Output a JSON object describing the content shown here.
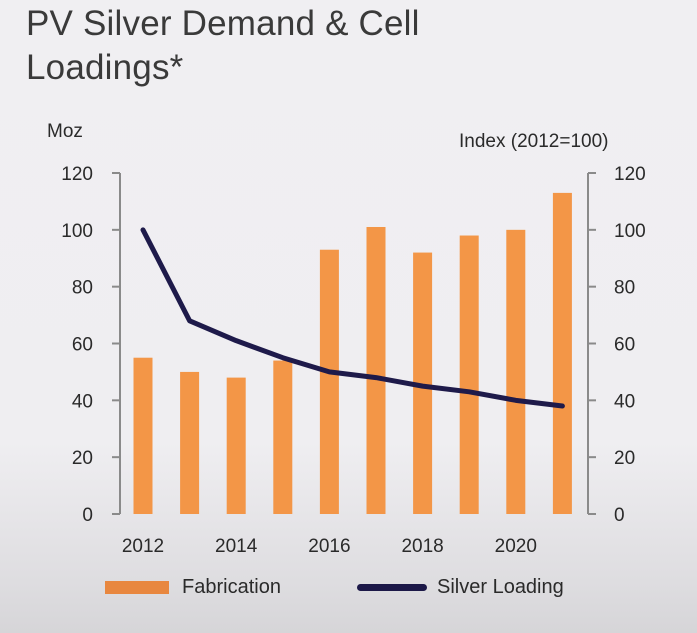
{
  "title": "PV Silver Demand & Cell Loadings*",
  "chart_data": {
    "type": "bar+line",
    "title": "PV Silver Demand & Cell Loadings*",
    "categories": [
      "2012",
      "2013",
      "2014",
      "2015",
      "2016",
      "2017",
      "2018",
      "2019",
      "2020",
      "2021"
    ],
    "x_tick_labels": [
      "2012",
      "2014",
      "2016",
      "2018",
      "2020"
    ],
    "series": [
      {
        "name": "Fabrication",
        "type": "bar",
        "axis": "left",
        "color": "#f39647",
        "values": [
          55,
          50,
          48,
          54,
          93,
          101,
          92,
          98,
          100,
          113
        ]
      },
      {
        "name": "Silver Loading",
        "type": "line",
        "axis": "right",
        "color": "#1e1a4a",
        "values": [
          100,
          68,
          61,
          55,
          50,
          48,
          45,
          43,
          40,
          38
        ]
      }
    ],
    "left_axis": {
      "label": "Moz",
      "range": [
        0,
        120
      ],
      "ticks": [
        "0",
        "20",
        "40",
        "60",
        "80",
        "100",
        "120"
      ]
    },
    "right_axis": {
      "label": "Index (2012=100)",
      "range": [
        0,
        120
      ],
      "ticks": [
        "0",
        "20",
        "40",
        "60",
        "80",
        "100",
        "120"
      ]
    },
    "grid": false,
    "legend": {
      "position": "bottom",
      "entries": [
        "Fabrication",
        "Silver Loading"
      ]
    }
  }
}
